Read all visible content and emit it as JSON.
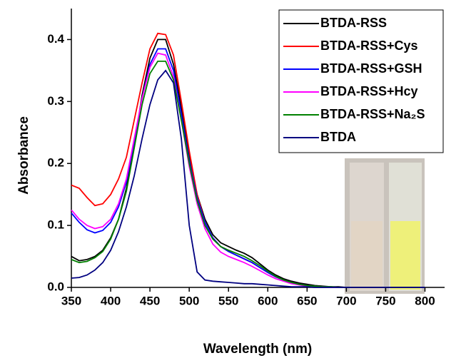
{
  "chart_data": {
    "type": "line",
    "x_label": "Wavelength (nm)",
    "y_label": "Absorbance",
    "x": [
      350,
      360,
      370,
      380,
      390,
      400,
      410,
      420,
      430,
      440,
      450,
      460,
      470,
      480,
      490,
      500,
      510,
      520,
      530,
      540,
      550,
      560,
      570,
      580,
      590,
      600,
      610,
      620,
      630,
      640,
      650,
      660,
      670,
      680,
      690,
      700,
      710,
      720,
      730,
      740,
      750,
      760,
      770,
      780,
      790,
      800
    ],
    "series": [
      {
        "name": "BTDA-RSS",
        "color": "#000000",
        "values": [
          0.05,
          0.043,
          0.045,
          0.05,
          0.06,
          0.08,
          0.11,
          0.16,
          0.23,
          0.31,
          0.37,
          0.4,
          0.4,
          0.36,
          0.29,
          0.21,
          0.15,
          0.11,
          0.085,
          0.072,
          0.066,
          0.06,
          0.055,
          0.048,
          0.038,
          0.028,
          0.02,
          0.014,
          0.01,
          0.007,
          0.005,
          0.003,
          0.002,
          0.001,
          0.001,
          0,
          0,
          0,
          0,
          0,
          0,
          0,
          0,
          0,
          0,
          0
        ]
      },
      {
        "name": "BTDA-RSS+Cys",
        "color": "#ff0000",
        "values": [
          0.165,
          0.16,
          0.145,
          0.132,
          0.135,
          0.15,
          0.175,
          0.21,
          0.27,
          0.33,
          0.385,
          0.41,
          0.408,
          0.375,
          0.3,
          0.22,
          0.15,
          0.105,
          0.08,
          0.066,
          0.058,
          0.052,
          0.046,
          0.04,
          0.032,
          0.024,
          0.017,
          0.012,
          0.008,
          0.005,
          0.003,
          0.002,
          0.001,
          0.001,
          0,
          0,
          0,
          0,
          0,
          0,
          0,
          0,
          0,
          0,
          0,
          0
        ]
      },
      {
        "name": "BTDA-RSS+GSH",
        "color": "#0000ff",
        "values": [
          0.12,
          0.105,
          0.093,
          0.088,
          0.092,
          0.105,
          0.13,
          0.17,
          0.235,
          0.305,
          0.36,
          0.385,
          0.385,
          0.35,
          0.28,
          0.205,
          0.145,
          0.105,
          0.08,
          0.066,
          0.058,
          0.052,
          0.046,
          0.04,
          0.032,
          0.024,
          0.017,
          0.012,
          0.008,
          0.005,
          0.003,
          0.002,
          0.001,
          0.001,
          0,
          0,
          0,
          0,
          0,
          0,
          0,
          0,
          0,
          0,
          0,
          0
        ]
      },
      {
        "name": "BTDA-RSS+Hcy",
        "color": "#ff00ff",
        "values": [
          0.125,
          0.11,
          0.1,
          0.095,
          0.098,
          0.11,
          0.135,
          0.175,
          0.24,
          0.305,
          0.355,
          0.378,
          0.375,
          0.34,
          0.27,
          0.195,
          0.135,
          0.095,
          0.07,
          0.057,
          0.05,
          0.045,
          0.04,
          0.034,
          0.027,
          0.02,
          0.014,
          0.01,
          0.006,
          0.004,
          0.002,
          0.001,
          0.001,
          0,
          0,
          0,
          0,
          0,
          0,
          0,
          0,
          0,
          0,
          0,
          0,
          0
        ]
      },
      {
        "name": "BTDA-RSS+Na₂S",
        "color": "#008000",
        "values": [
          0.045,
          0.04,
          0.042,
          0.048,
          0.058,
          0.078,
          0.11,
          0.155,
          0.225,
          0.295,
          0.345,
          0.365,
          0.365,
          0.335,
          0.27,
          0.2,
          0.14,
          0.1,
          0.078,
          0.066,
          0.06,
          0.055,
          0.05,
          0.043,
          0.035,
          0.026,
          0.018,
          0.012,
          0.008,
          0.005,
          0.003,
          0.002,
          0.001,
          0.001,
          0,
          0,
          0,
          0,
          0,
          0,
          0,
          0,
          0,
          0,
          0,
          0
        ]
      },
      {
        "name": "BTDA",
        "color": "#000080",
        "values": [
          0.015,
          0.016,
          0.02,
          0.028,
          0.04,
          0.06,
          0.09,
          0.13,
          0.18,
          0.24,
          0.295,
          0.335,
          0.35,
          0.33,
          0.24,
          0.1,
          0.025,
          0.012,
          0.01,
          0.009,
          0.008,
          0.007,
          0.006,
          0.006,
          0.005,
          0.004,
          0.003,
          0.002,
          0.001,
          0.001,
          0.001,
          0,
          0,
          0,
          0,
          0,
          0,
          0,
          0,
          0,
          0,
          0,
          0,
          0,
          0,
          0
        ]
      }
    ],
    "xlim": [
      350,
      825
    ],
    "ylim": [
      0,
      0.45
    ],
    "xticks": [
      350,
      400,
      450,
      500,
      550,
      600,
      650,
      700,
      750,
      800
    ],
    "yticks": [
      {
        "value": 0,
        "label": "0.0"
      },
      0.1,
      0.2,
      0.3,
      0.4
    ],
    "legend": "upper right"
  }
}
